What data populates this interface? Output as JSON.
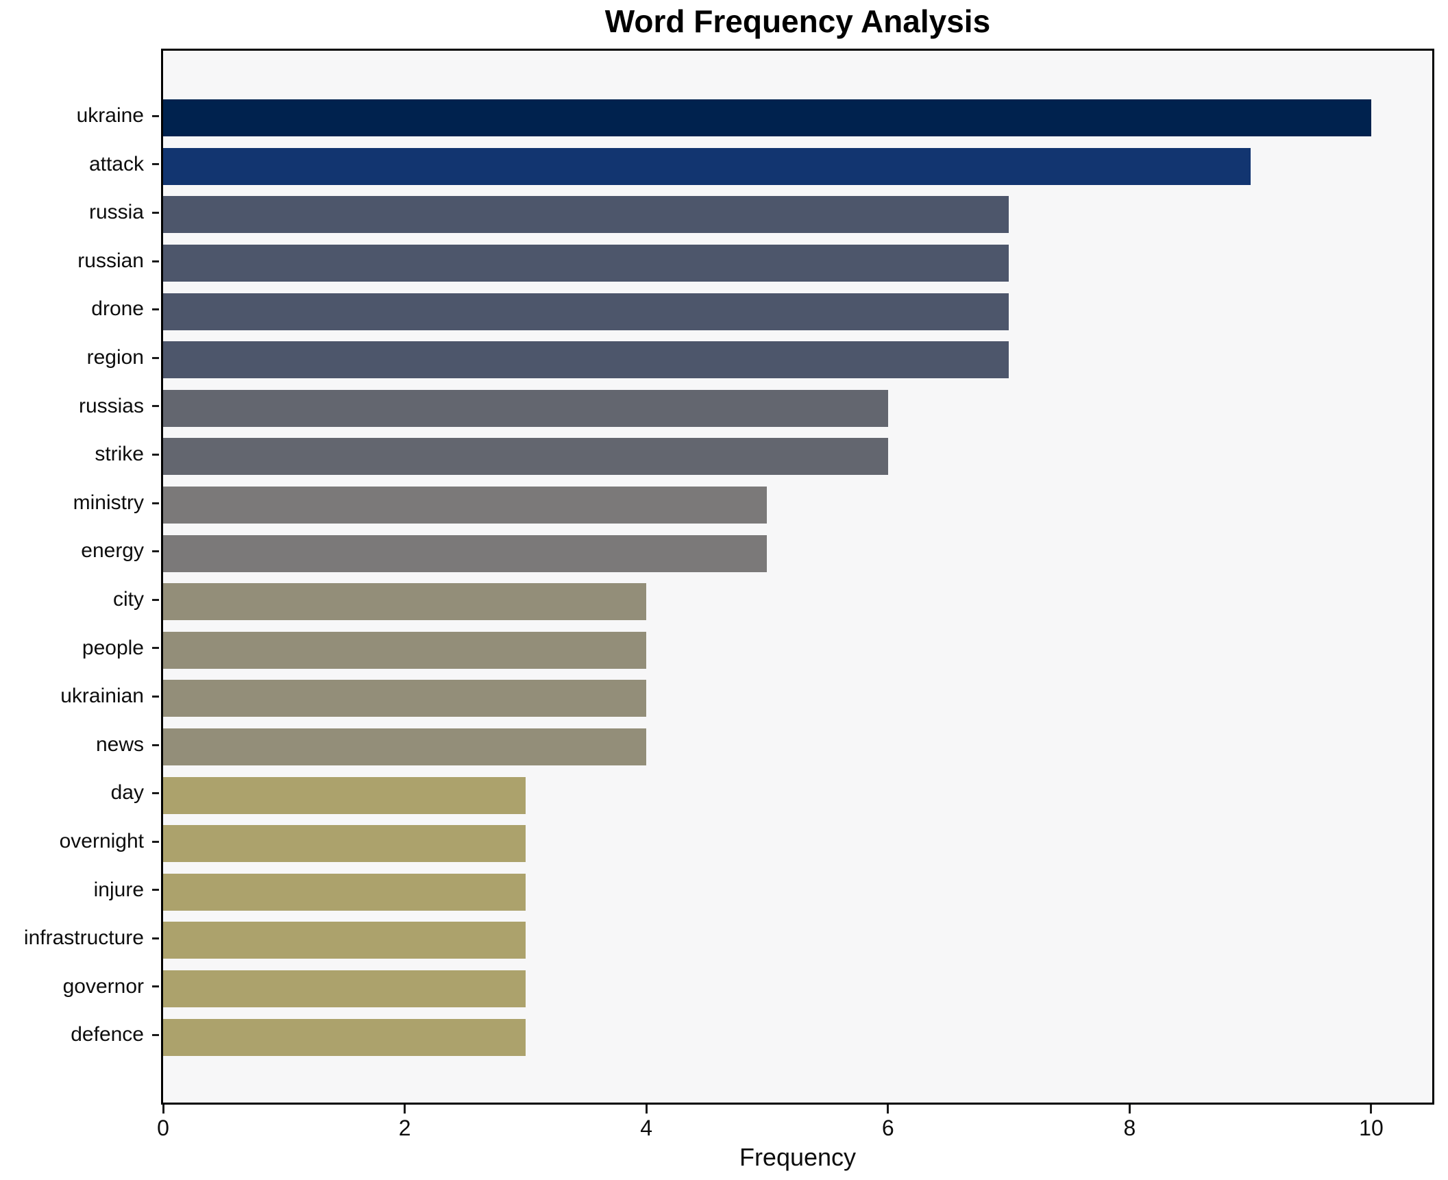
{
  "chart_data": {
    "type": "bar",
    "orientation": "horizontal",
    "title": "Word Frequency Analysis",
    "xlabel": "Frequency",
    "ylabel": "",
    "grid": false,
    "legend": null,
    "xlim": [
      0,
      10.505
    ],
    "xticks": [
      0,
      2,
      4,
      6,
      8,
      10
    ],
    "categories": [
      "ukraine",
      "attack",
      "russia",
      "russian",
      "drone",
      "region",
      "russias",
      "strike",
      "ministry",
      "energy",
      "city",
      "people",
      "ukrainian",
      "news",
      "day",
      "overnight",
      "injure",
      "infrastructure",
      "governor",
      "defence"
    ],
    "values": [
      10,
      9,
      7,
      7,
      7,
      7,
      6,
      6,
      5,
      5,
      4,
      4,
      4,
      4,
      3,
      3,
      3,
      3,
      3,
      3
    ],
    "bar_colors": [
      "#00224e",
      "#123570",
      "#4d566b",
      "#4d566b",
      "#4d566b",
      "#4d566b",
      "#63666f",
      "#63666f",
      "#7b7979",
      "#7b7979",
      "#938e79",
      "#938e79",
      "#938e79",
      "#938e79",
      "#aca26c",
      "#aca26c",
      "#aca26c",
      "#aca26c",
      "#aca26c",
      "#aca26c"
    ],
    "colors": {
      "figure_background": "#ffffff",
      "plot_background": "#f7f7f8",
      "spine": "#000000",
      "text": "#0d0d0d"
    }
  }
}
